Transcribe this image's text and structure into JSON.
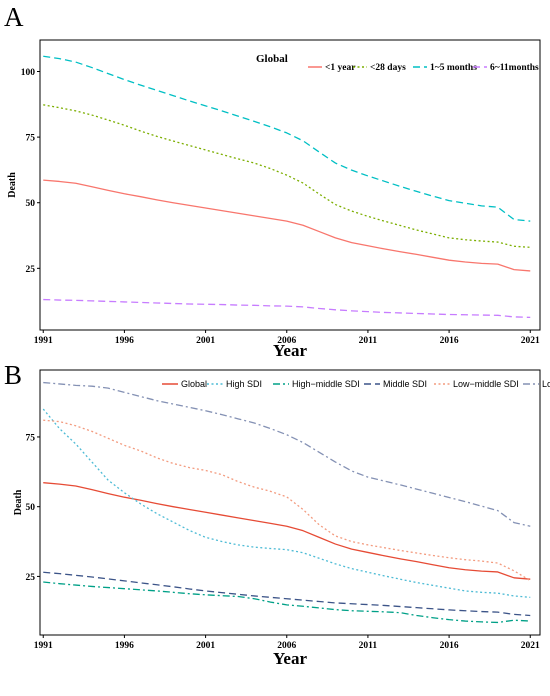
{
  "chart_data": [
    {
      "panel": "A",
      "type": "line",
      "legend_title": "Global",
      "legend_position": "top-right",
      "xlabel": "Year",
      "ylabel": "Death",
      "x_ticks": [
        1991,
        1996,
        2001,
        2006,
        2011,
        2016,
        2021
      ],
      "y_ticks": [
        25,
        50,
        75,
        100
      ],
      "xlim": [
        1990.8,
        2021.6
      ],
      "ylim": [
        1.5,
        112
      ],
      "grid": false,
      "x": [
        1991,
        1992,
        1993,
        1994,
        1995,
        1996,
        1997,
        1998,
        1999,
        2000,
        2001,
        2002,
        2003,
        2004,
        2005,
        2006,
        2007,
        2008,
        2009,
        2010,
        2011,
        2012,
        2013,
        2014,
        2015,
        2016,
        2017,
        2018,
        2019,
        2020,
        2021
      ],
      "series": [
        {
          "name": "<1 year",
          "color": "#F8766D",
          "dash": "solid",
          "values": [
            58.6,
            58.1,
            57.4,
            56.1,
            54.7,
            53.4,
            52.3,
            51.1,
            50.0,
            49.0,
            48.0,
            47.0,
            46.0,
            45.0,
            44.0,
            43.0,
            41.4,
            39.0,
            36.6,
            34.8,
            33.6,
            32.4,
            31.3,
            30.3,
            29.2,
            28.1,
            27.4,
            26.9,
            26.6,
            24.5,
            24.0
          ]
        },
        {
          "name": "<28 days",
          "color": "#7CAE00",
          "dash": "dotted",
          "values": [
            87.3,
            86.2,
            85.0,
            83.4,
            81.5,
            79.5,
            77.3,
            75.3,
            73.5,
            71.8,
            70.1,
            68.4,
            66.7,
            65.1,
            63.0,
            60.5,
            57.5,
            53.3,
            49.3,
            46.8,
            44.8,
            43.0,
            41.3,
            39.6,
            38.1,
            36.6,
            35.9,
            35.4,
            35.0,
            33.4,
            33.0
          ]
        },
        {
          "name": "1~5 months",
          "color": "#00BFC4",
          "dash": "dashed",
          "values": [
            105.8,
            104.9,
            103.6,
            101.5,
            99.2,
            96.9,
            94.8,
            92.8,
            90.8,
            88.8,
            86.9,
            85.0,
            83.0,
            81.0,
            78.9,
            76.6,
            73.6,
            69.3,
            65.1,
            62.4,
            60.2,
            58.2,
            56.2,
            54.3,
            52.5,
            50.8,
            49.8,
            48.8,
            48.3,
            43.6,
            43.0
          ]
        },
        {
          "name": "6~11months",
          "color": "#C77CFF",
          "dash": "dashed",
          "values": [
            13.1,
            12.9,
            12.8,
            12.6,
            12.4,
            12.2,
            12.0,
            11.8,
            11.6,
            11.4,
            11.3,
            11.2,
            11.0,
            10.9,
            10.7,
            10.6,
            10.3,
            9.7,
            9.2,
            8.8,
            8.5,
            8.2,
            8.0,
            7.8,
            7.6,
            7.4,
            7.3,
            7.2,
            7.1,
            6.5,
            6.3
          ]
        }
      ]
    },
    {
      "panel": "B",
      "type": "line",
      "legend_position": "top-right",
      "xlabel": "Year",
      "ylabel": "Death",
      "x_ticks": [
        1991,
        1996,
        2001,
        2006,
        2011,
        2016,
        2021
      ],
      "y_ticks": [
        25,
        50,
        75
      ],
      "xlim": [
        1990.8,
        2021.6
      ],
      "ylim": [
        4,
        99
      ],
      "grid": false,
      "x": [
        1991,
        1992,
        1993,
        1994,
        1995,
        1996,
        1997,
        1998,
        1999,
        2000,
        2001,
        2002,
        2003,
        2004,
        2005,
        2006,
        2007,
        2008,
        2009,
        2010,
        2011,
        2012,
        2013,
        2014,
        2015,
        2016,
        2017,
        2018,
        2019,
        2020,
        2021
      ],
      "series": [
        {
          "name": "Global",
          "color": "#E64B35",
          "dash": "solid",
          "values": [
            58.6,
            58.1,
            57.4,
            56.1,
            54.7,
            53.4,
            52.3,
            51.1,
            50.0,
            49.0,
            48.0,
            47.0,
            46.0,
            45.0,
            44.0,
            43.0,
            41.4,
            39.0,
            36.6,
            34.8,
            33.6,
            32.4,
            31.3,
            30.3,
            29.2,
            28.1,
            27.4,
            26.9,
            26.6,
            24.5,
            24.0
          ]
        },
        {
          "name": "High SDI",
          "color": "#4DBBD5",
          "dash": "dotted",
          "values": [
            85.0,
            78.0,
            72.5,
            66.0,
            59.5,
            55.0,
            51.0,
            47.5,
            44.5,
            41.5,
            39.0,
            37.5,
            36.3,
            35.5,
            35.0,
            34.6,
            33.5,
            31.5,
            29.5,
            27.8,
            26.5,
            25.2,
            24.0,
            22.8,
            21.8,
            20.8,
            19.8,
            19.3,
            19.0,
            18.0,
            17.5
          ]
        },
        {
          "name": "High−middle SDI",
          "color": "#00A087",
          "dash": "dashdot",
          "values": [
            23.0,
            22.4,
            21.9,
            21.4,
            21.0,
            20.6,
            20.2,
            19.8,
            19.3,
            18.8,
            18.4,
            18.1,
            17.8,
            17.0,
            15.8,
            14.8,
            14.3,
            13.7,
            13.1,
            12.7,
            12.5,
            12.3,
            12.0,
            11.0,
            10.2,
            9.5,
            9.0,
            8.7,
            8.5,
            9.3,
            9.0
          ]
        },
        {
          "name": "Middle SDI",
          "color": "#3C5488",
          "dash": "dashed",
          "values": [
            26.5,
            26.0,
            25.4,
            24.8,
            24.1,
            23.4,
            22.7,
            22.0,
            21.3,
            20.5,
            19.8,
            19.2,
            18.6,
            18.0,
            17.5,
            17.0,
            16.5,
            16.0,
            15.5,
            15.2,
            14.9,
            14.6,
            14.2,
            13.8,
            13.4,
            13.0,
            12.7,
            12.4,
            12.2,
            11.4,
            11.0
          ]
        },
        {
          "name": "Low−middle SDI",
          "color": "#F39B7F",
          "dash": "dotted",
          "values": [
            81.0,
            80.5,
            79.0,
            77.0,
            74.5,
            72.0,
            70.0,
            67.5,
            65.5,
            64.0,
            63.0,
            61.5,
            59.0,
            57.0,
            55.5,
            53.5,
            49.0,
            43.5,
            39.5,
            37.5,
            36.3,
            35.3,
            34.3,
            33.4,
            32.5,
            31.7,
            31.0,
            30.5,
            29.8,
            27.0,
            23.5
          ]
        },
        {
          "name": "Low SDI",
          "color": "#8491B4",
          "dash": "dashdot",
          "values": [
            94.5,
            94.0,
            93.5,
            93.2,
            92.5,
            91.0,
            89.5,
            88.0,
            86.8,
            85.6,
            84.4,
            83.0,
            81.5,
            80.0,
            78.0,
            75.8,
            73.0,
            69.5,
            66.0,
            62.8,
            60.6,
            59.2,
            57.8,
            56.3,
            54.8,
            53.3,
            51.8,
            50.2,
            48.6,
            44.3,
            43.0
          ]
        }
      ]
    }
  ]
}
